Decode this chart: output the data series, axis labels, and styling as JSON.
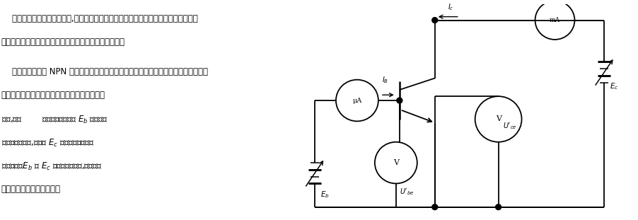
{
  "bg_color": "#ffffff",
  "text_color": "#000000",
  "line_color": "#000000",
  "fig_width": 9.03,
  "fig_height": 3.11,
  "dpi": 100,
  "paragraph1": "    在设计半导体三极管电路时,往往需要了解半导体三极管各极电流与电压之间的关系。",
  "paragraph2": "半导体三极管的特性曲线就是用来描述这种关系的曲线。",
  "paragraph3": "    下面仍以常见的 NPN 型三极管共发射极电路为例来说明半导体三极管的输入特性曲线",
  "paragraph4": "和输出特性曲线。测绘半导体三极管特性曲线的",
  "paragraph5": "电路,如图        所示。图中的电源 $E_b$ 用来供给",
  "paragraph6": "发射结正向偏压,而电源 $E_c$ 则用来供给集电结",
  "paragraph7": "反向偏压。$E_b$ 和 $E_c$ 都是可以调整的,以便得到",
  "paragraph8": "从零到所需值的不同电压。"
}
